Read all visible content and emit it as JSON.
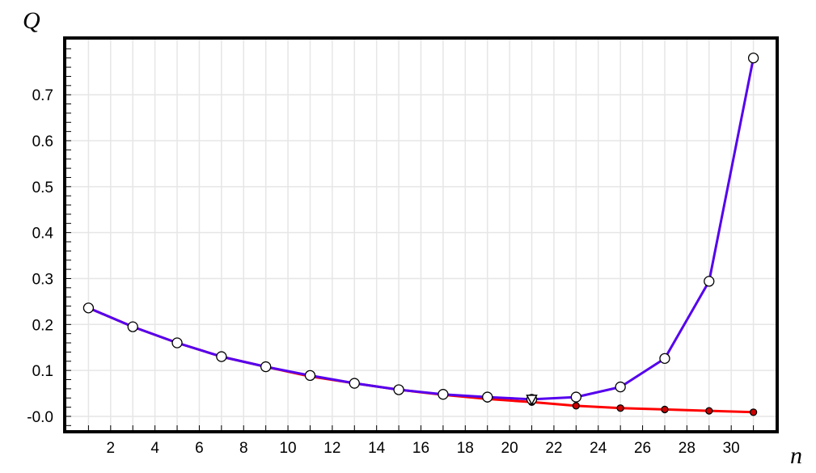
{
  "chart_data": {
    "type": "line",
    "title": "",
    "xlabel": "n",
    "ylabel": "Q",
    "xlim": [
      0,
      32
    ],
    "ylim": [
      -0.03,
      0.82
    ],
    "x_ticks": [
      2,
      4,
      6,
      8,
      10,
      12,
      14,
      16,
      18,
      20,
      22,
      24,
      26,
      28,
      30
    ],
    "x_tick_labels": [
      "2",
      "4",
      "6",
      "8",
      "10",
      "12",
      "14",
      "16",
      "18",
      "20",
      "22",
      "24",
      "26",
      "28",
      "30"
    ],
    "y_ticks": [
      0,
      0.1,
      0.2,
      0.3,
      0.4,
      0.5,
      0.6,
      0.7
    ],
    "y_tick_labels": [
      "-0.0",
      "0.1",
      "0.2",
      "0.3",
      "0.4",
      "0.5",
      "0.6",
      "0.7"
    ],
    "grid": true,
    "legend": "none",
    "series": [
      {
        "color": "#ff0000",
        "marker": "filled-circle",
        "marker_color": "#cc0000",
        "x": [
          1,
          3,
          5,
          7,
          9,
          11,
          13,
          15,
          17,
          19,
          21,
          23,
          25,
          27,
          29,
          31
        ],
        "y": [
          0.236,
          0.195,
          0.16,
          0.13,
          0.108,
          0.087,
          0.072,
          0.058,
          0.047,
          0.038,
          0.031,
          0.023,
          0.018,
          0.015,
          0.012,
          0.009
        ]
      },
      {
        "color": "#5500ee",
        "marker": "open-circle",
        "marker_color": "#ffffff",
        "x": [
          1,
          3,
          5,
          7,
          9,
          11,
          13,
          15,
          17,
          19,
          21,
          23,
          25,
          27,
          29,
          31
        ],
        "y": [
          0.236,
          0.195,
          0.16,
          0.13,
          0.108,
          0.089,
          0.072,
          0.058,
          0.048,
          0.042,
          0.037,
          0.042,
          0.064,
          0.126,
          0.294,
          0.78
        ]
      }
    ],
    "annotations": [
      {
        "type": "open-triangle-down",
        "x": 21,
        "y": 0.037,
        "color": "#ffffff"
      }
    ],
    "colors": {
      "grid": "#e6e6e6",
      "frame": "#000000"
    }
  }
}
